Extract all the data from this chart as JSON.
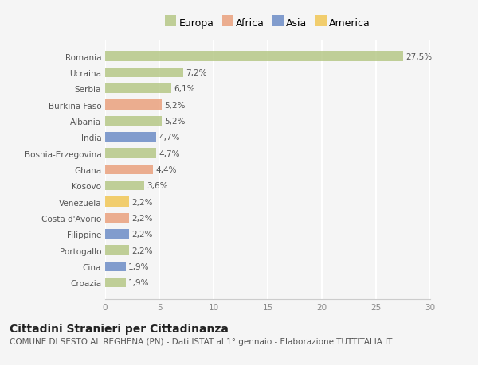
{
  "countries": [
    "Romania",
    "Ucraina",
    "Serbia",
    "Burkina Faso",
    "Albania",
    "India",
    "Bosnia-Erzegovina",
    "Ghana",
    "Kosovo",
    "Venezuela",
    "Costa d'Avorio",
    "Filippine",
    "Portogallo",
    "Cina",
    "Croazia"
  ],
  "values": [
    27.5,
    7.2,
    6.1,
    5.2,
    5.2,
    4.7,
    4.7,
    4.4,
    3.6,
    2.2,
    2.2,
    2.2,
    2.2,
    1.9,
    1.9
  ],
  "labels": [
    "27,5%",
    "7,2%",
    "6,1%",
    "5,2%",
    "5,2%",
    "4,7%",
    "4,7%",
    "4,4%",
    "3,6%",
    "2,2%",
    "2,2%",
    "2,2%",
    "2,2%",
    "1,9%",
    "1,9%"
  ],
  "continents": [
    "Europa",
    "Europa",
    "Europa",
    "Africa",
    "Europa",
    "Asia",
    "Europa",
    "Africa",
    "Europa",
    "America",
    "Africa",
    "Asia",
    "Europa",
    "Asia",
    "Europa"
  ],
  "colors": {
    "Europa": "#adc178",
    "Africa": "#e8956d",
    "Asia": "#5b7fc0",
    "America": "#f0c040"
  },
  "legend_order": [
    "Europa",
    "Africa",
    "Asia",
    "America"
  ],
  "xlim": [
    0,
    30
  ],
  "xticks": [
    0,
    5,
    10,
    15,
    20,
    25,
    30
  ],
  "title": "Cittadini Stranieri per Cittadinanza",
  "subtitle": "COMUNE DI SESTO AL REGHENA (PN) - Dati ISTAT al 1° gennaio - Elaborazione TUTTITALIA.IT",
  "bg_color": "#f5f5f5",
  "grid_color": "#ffffff",
  "bar_height": 0.6,
  "title_fontsize": 10,
  "subtitle_fontsize": 7.5,
  "label_fontsize": 7.5,
  "tick_fontsize": 7.5,
  "legend_fontsize": 9
}
